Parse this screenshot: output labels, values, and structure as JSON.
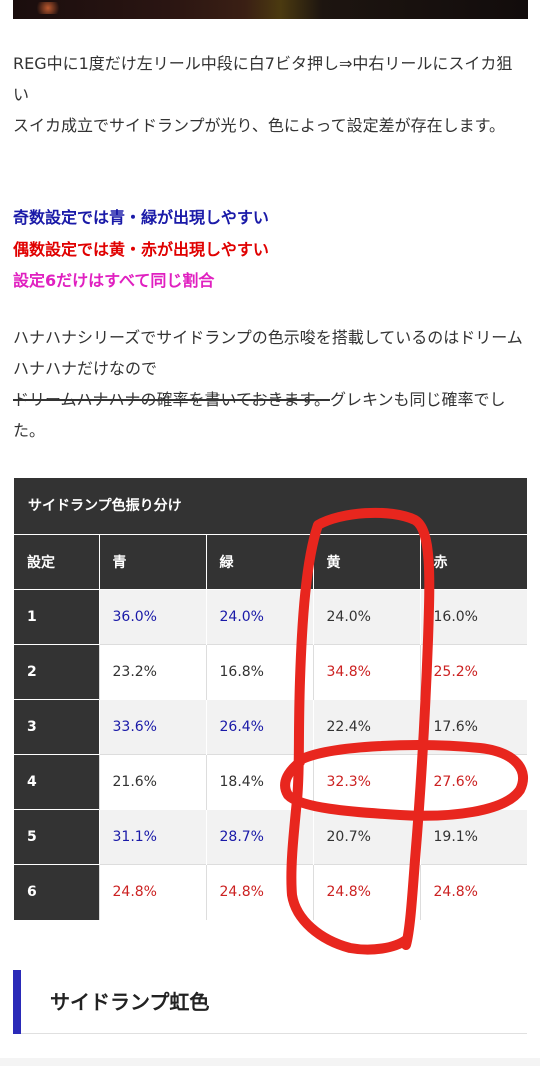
{
  "intro": {
    "line1": "REG中に1度だけ左リール中段に白7ビタ押し⇒中右リールにスイカ狙い",
    "line2": "スイカ成立でサイドランプが光り、色によって設定差が存在します。"
  },
  "highlights": {
    "odd": "奇数設定では青・緑が出現しやすい",
    "even": "偶数設定では黄・赤が出現しやすい",
    "six": "設定6だけはすべて同じ割合"
  },
  "note": {
    "line1": "ハナハナシリーズでサイドランプの色示唆を搭載しているのはドリームハナハナだけなので",
    "strike": "ドリームハナハナの確率を書いておきます。",
    "line2_rest": "グレキンも同じ確率でした。"
  },
  "table": {
    "title": "サイドランプ色振り分け",
    "headers": [
      "設定",
      "青",
      "緑",
      "黄",
      "赤"
    ],
    "rows": [
      {
        "setting": "1",
        "blue": "36.0%",
        "green": "24.0%",
        "yellow": "24.0%",
        "red": "16.0%"
      },
      {
        "setting": "2",
        "blue": "23.2%",
        "green": "16.8%",
        "yellow": "34.8%",
        "red": "25.2%"
      },
      {
        "setting": "3",
        "blue": "33.6%",
        "green": "26.4%",
        "yellow": "22.4%",
        "red": "17.6%"
      },
      {
        "setting": "4",
        "blue": "21.6%",
        "green": "18.4%",
        "yellow": "32.3%",
        "red": "27.6%"
      },
      {
        "setting": "5",
        "blue": "31.1%",
        "green": "28.7%",
        "yellow": "20.7%",
        "red": "19.1%"
      },
      {
        "setting": "6",
        "blue": "24.8%",
        "green": "24.8%",
        "yellow": "24.8%",
        "red": "24.8%"
      }
    ],
    "colors": {
      "blue_text": "#1a1aa8",
      "red_text": "#cc2222",
      "header_bg": "#333333"
    }
  },
  "section": {
    "heading": "サイドランプ虹色",
    "accent": "#2a2ab8"
  },
  "annotation": {
    "color": "#e8261e"
  }
}
